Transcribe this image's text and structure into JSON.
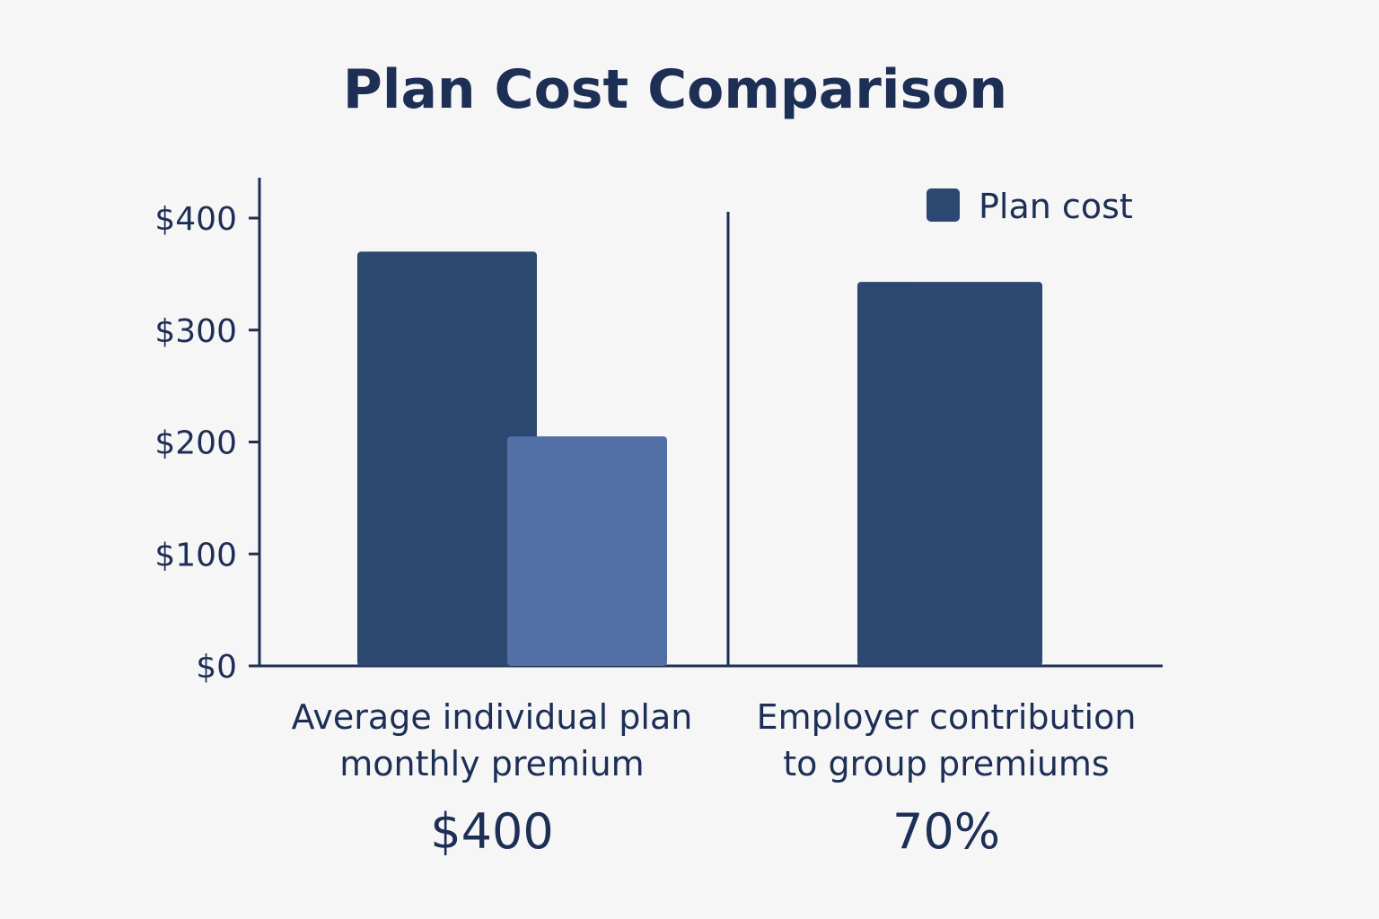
{
  "chart_data": {
    "type": "bar",
    "title": "Plan Cost Comparison",
    "xlabel": "",
    "ylabel": "",
    "ylim": [
      0,
      400
    ],
    "yticks": [
      "$0",
      "$100",
      "$200",
      "$300",
      "$400"
    ],
    "ytick_values": [
      0,
      100,
      200,
      300,
      400
    ],
    "legend": {
      "entries": [
        "Plan cost"
      ],
      "placement": "top-right"
    },
    "grid": false,
    "categories": [
      {
        "label_lines": [
          "Average individual plan",
          "monthly premium"
        ],
        "stat": "$400",
        "bars": [
          {
            "value": 370,
            "color": "#2c4870"
          },
          {
            "value": 205,
            "color": "#526fa6"
          }
        ]
      },
      {
        "label_lines": [
          "Employer contribution",
          "to group premiums"
        ],
        "stat": "70%",
        "bars": [
          {
            "value": 343,
            "color": "#2c4870"
          }
        ]
      }
    ],
    "colors": {
      "primary": "#2c4870",
      "secondary": "#526fa6",
      "text": "#1d2f55",
      "background": "#f6f6f7"
    }
  }
}
